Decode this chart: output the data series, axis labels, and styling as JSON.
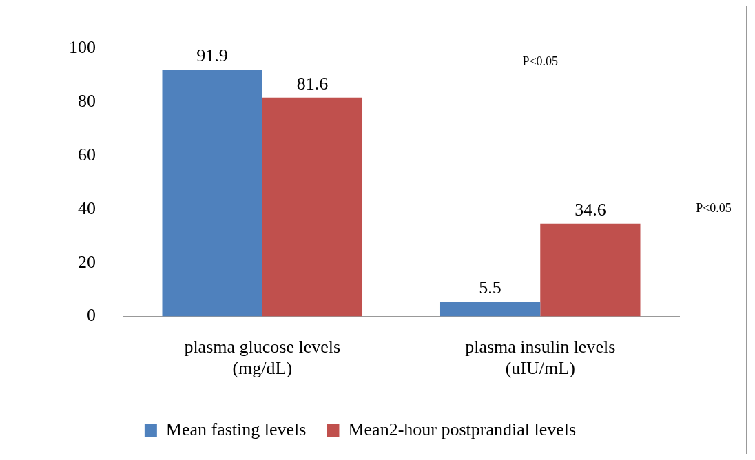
{
  "chart_data": {
    "type": "bar",
    "categories": [
      "plasma glucose levels (mg/dL)",
      "plasma insulin levels (uIU/mL)"
    ],
    "series": [
      {
        "name": "Mean fasting levels",
        "color": "#4f81bd",
        "values": [
          91.9,
          5.5
        ]
      },
      {
        "name": "Mean2-hour postprandial levels",
        "color": "#c0504d",
        "values": [
          81.6,
          34.6
        ]
      }
    ],
    "ylim": [
      0,
      100
    ],
    "yticks": [
      0,
      20,
      40,
      60,
      80,
      100
    ],
    "grid": false,
    "legend": "bottom",
    "data_labels": true,
    "annotations": [
      "P<0.05",
      "P<0.05"
    ]
  }
}
